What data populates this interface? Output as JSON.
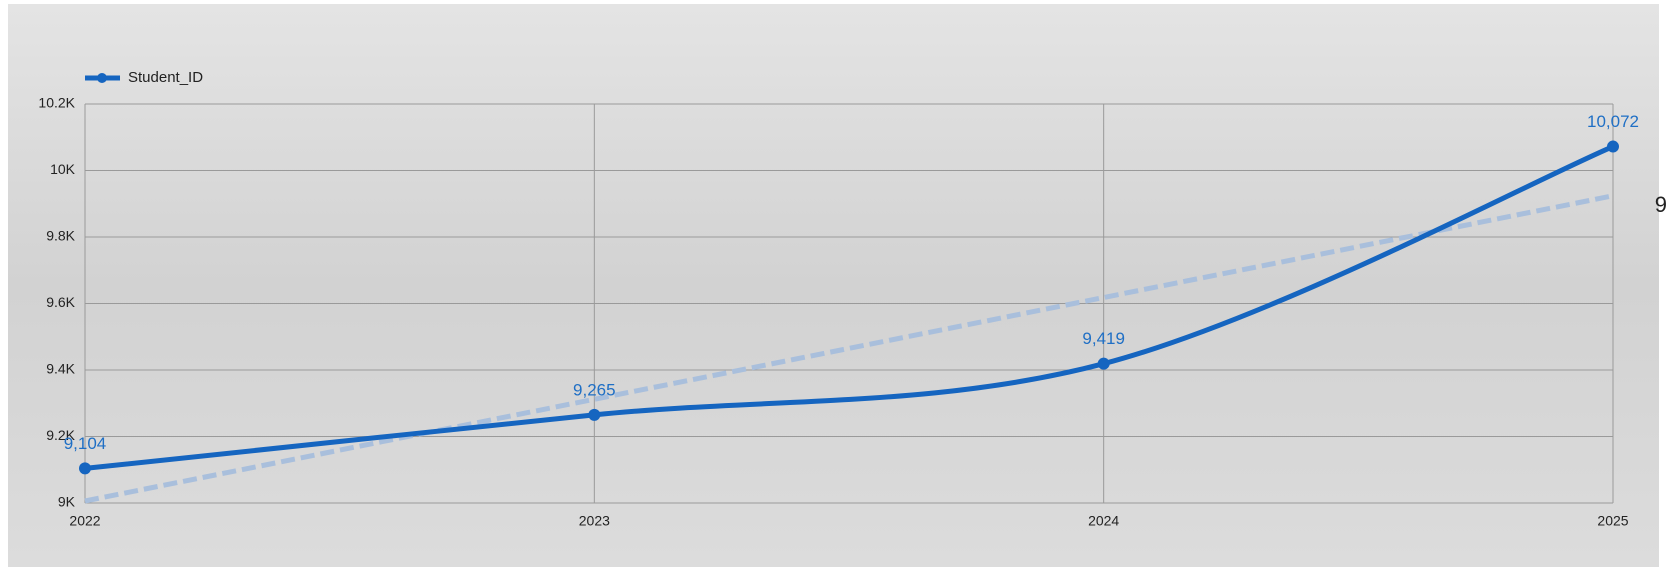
{
  "chart_data": {
    "type": "line",
    "x": [
      2022,
      2023,
      2024,
      2025
    ],
    "series": [
      {
        "name": "Student_ID",
        "color": "#1565c0",
        "values": [
          9104,
          9265,
          9419,
          10072
        ],
        "value_labels": [
          "9,104",
          "9,265",
          "9,419",
          "10,072"
        ]
      }
    ],
    "trendline": {
      "color": "#a9bfdc",
      "values": [
        9006,
        9924
      ]
    },
    "xlim": [
      2022,
      2025
    ],
    "xticks": [
      2022,
      2023,
      2024,
      2025
    ],
    "ylim": [
      9000,
      10200
    ],
    "yticks": [
      {
        "value": 9000,
        "label": "9K"
      },
      {
        "value": 9200,
        "label": "9.2K"
      },
      {
        "value": 9400,
        "label": "9.4K"
      },
      {
        "value": 9600,
        "label": "9.6K"
      },
      {
        "value": 9800,
        "label": "9.8K"
      },
      {
        "value": 10000,
        "label": "10K"
      },
      {
        "value": 10200,
        "label": "10.2K"
      }
    ],
    "grid": true,
    "legend": "top-left",
    "annotation": "9"
  }
}
